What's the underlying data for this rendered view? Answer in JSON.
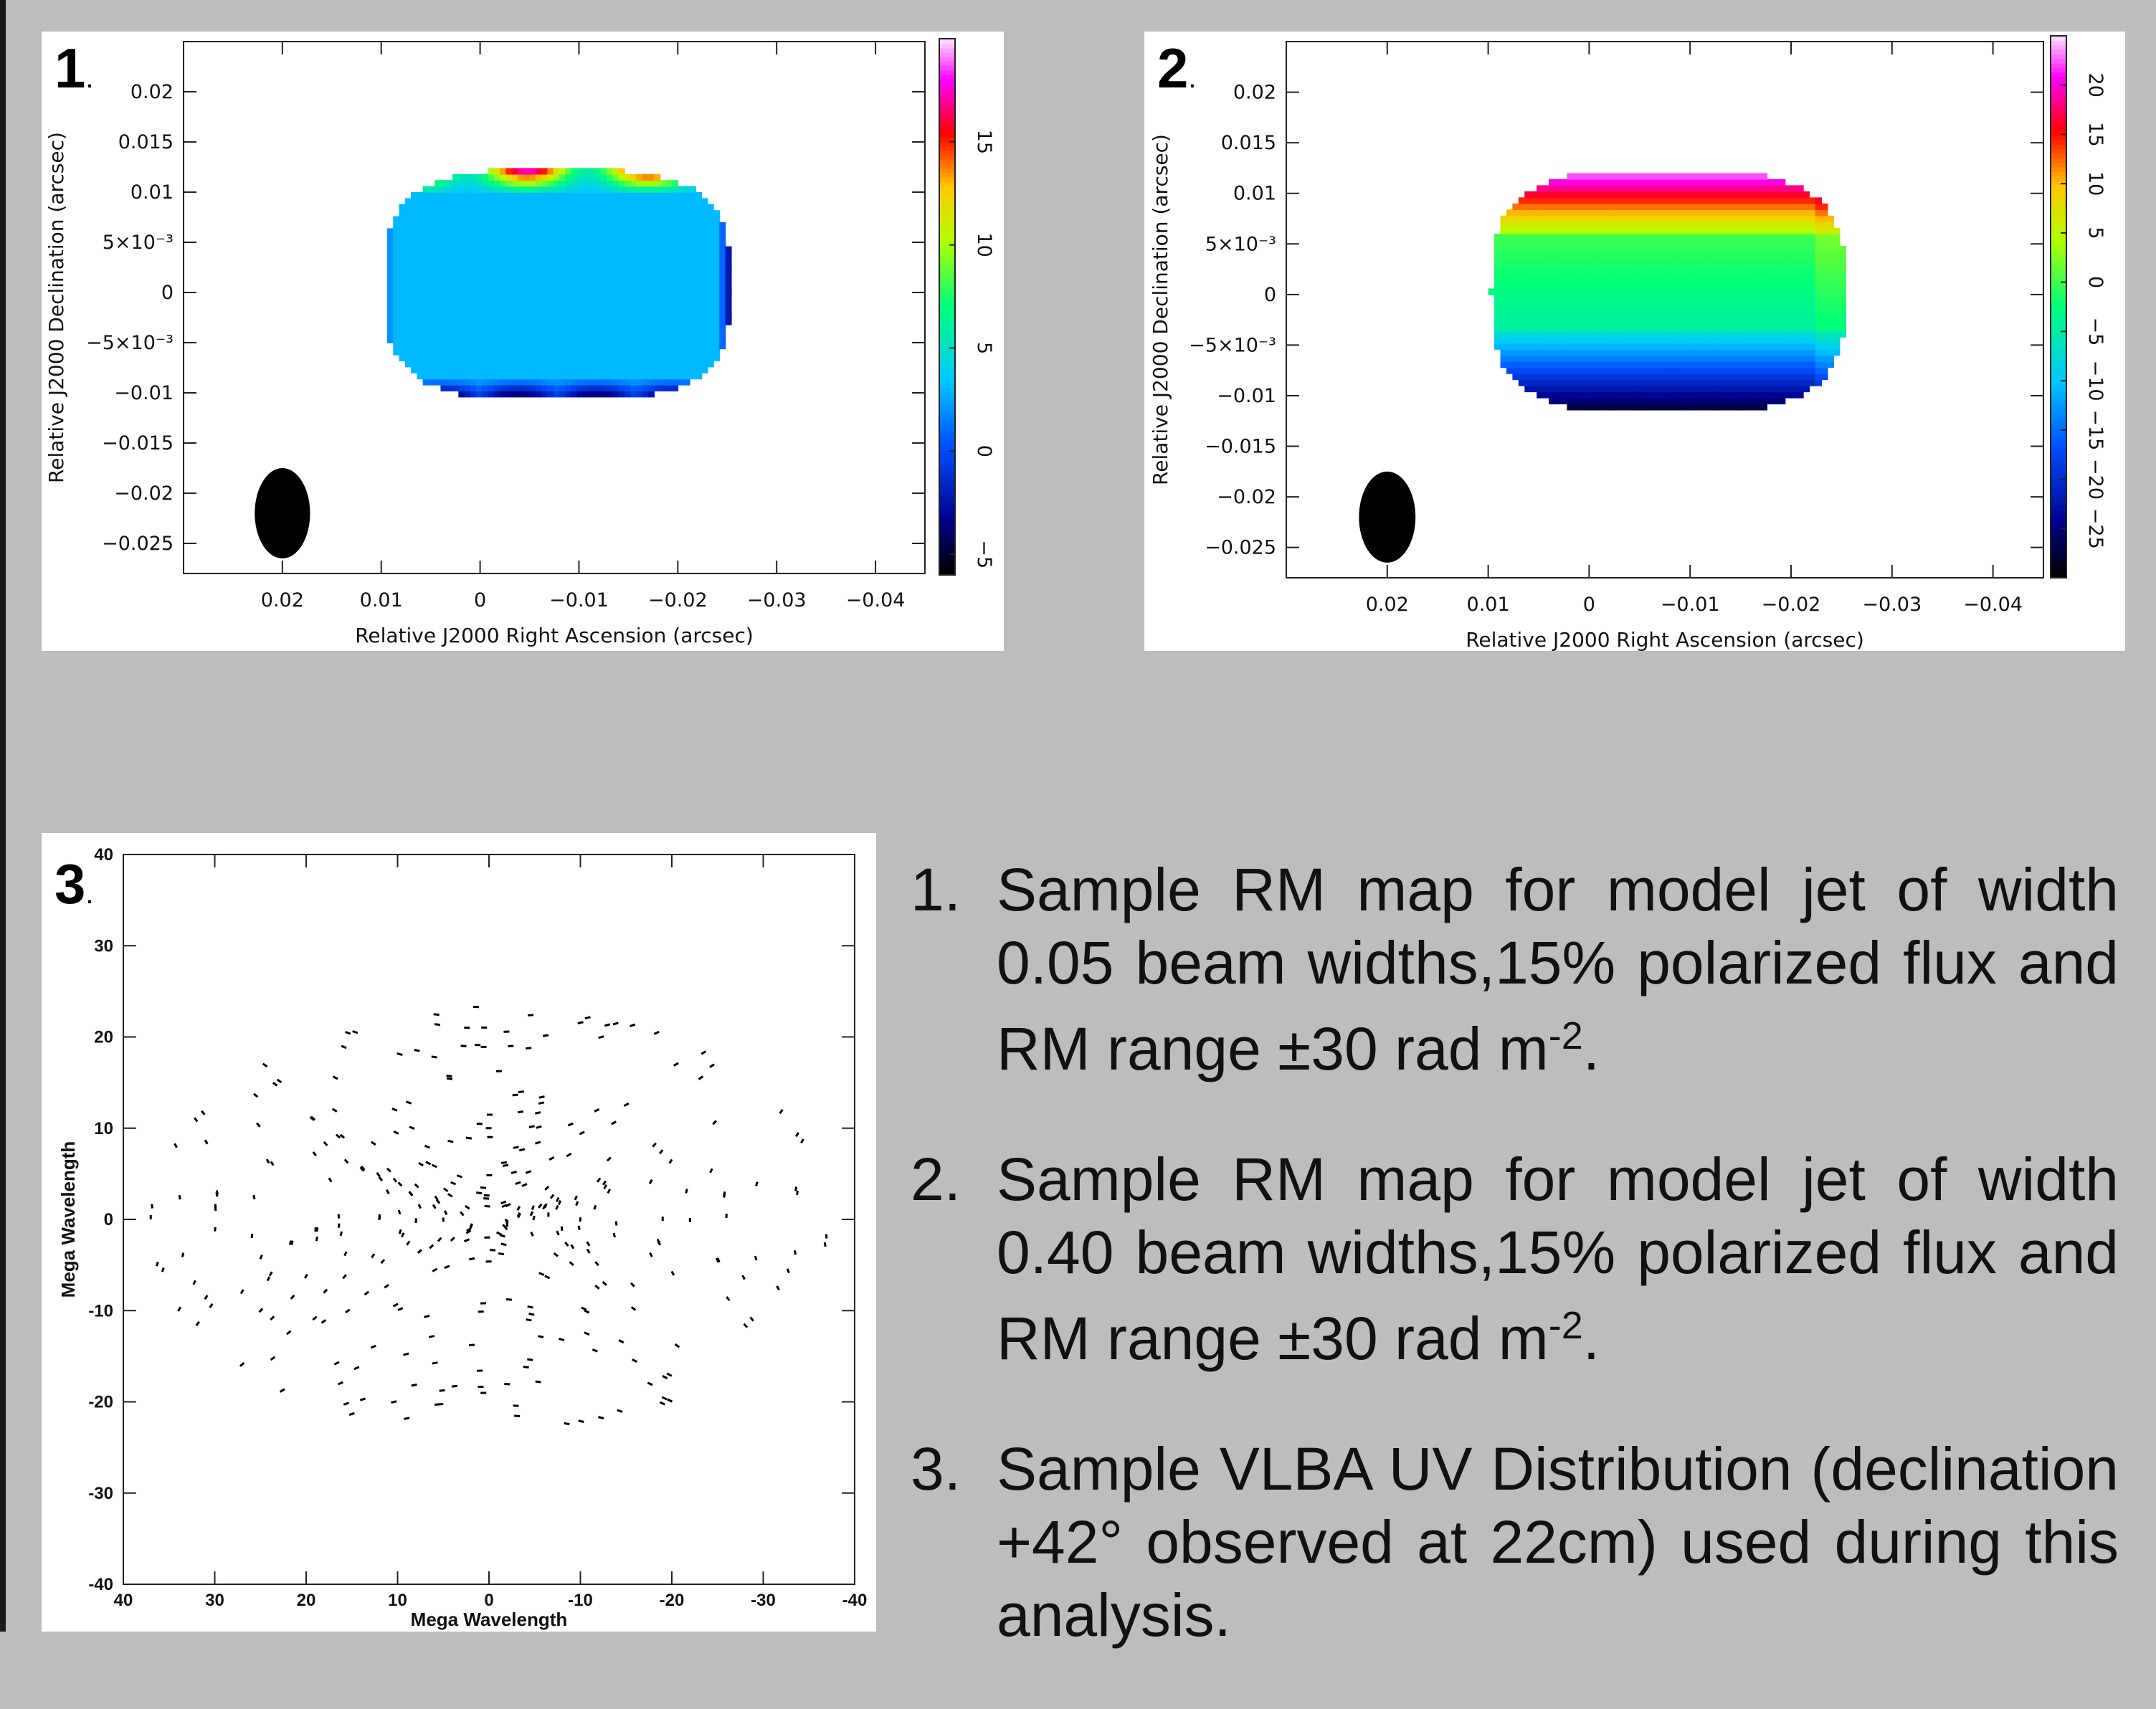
{
  "panels": [
    {
      "number": "1",
      "number_suffix": ".",
      "chart_data": {
        "type": "heatmap",
        "xlabel": "Relative J2000 Right Ascension (arcsec)",
        "ylabel": "Relative J2000 Declination (arcsec)",
        "xlim": [
          0.03,
          -0.045
        ],
        "ylim": [
          -0.028,
          0.025
        ],
        "xticks": [
          0.02,
          0.01,
          0,
          -0.01,
          -0.02,
          -0.03,
          -0.04
        ],
        "xtick_labels": [
          "0.02",
          "0.01",
          "0",
          "−0.01",
          "−0.02",
          "−0.03",
          "−0.04"
        ],
        "yticks": [
          0.02,
          0.015,
          0.01,
          0.005,
          0,
          -0.005,
          -0.01,
          -0.015,
          -0.02,
          -0.025
        ],
        "ytick_labels": [
          "0.02",
          "0.015",
          "0.01",
          "5×10⁻³",
          "0",
          "−5×10⁻³",
          "−0.01",
          "−0.015",
          "−0.02",
          "−0.025"
        ],
        "colorbar": {
          "range": [
            -6,
            20
          ],
          "ticks": [
            15,
            10,
            5,
            0,
            -5
          ],
          "tick_labels": [
            "15",
            "10",
            "5",
            "0",
            "−5"
          ]
        },
        "source_extent": {
          "ra": [
            0.01,
            -0.025
          ],
          "dec": [
            -0.011,
            0.012
          ]
        },
        "background_value": 3,
        "beam": {
          "ra": 0.02,
          "dec": -0.022,
          "ra_halfwidth": 0.0028,
          "dec_halfheight": 0.0045
        },
        "grid": false
      }
    },
    {
      "number": "2",
      "number_suffix": ".",
      "chart_data": {
        "type": "heatmap",
        "xlabel": "Relative J2000 Right Ascension (arcsec)",
        "ylabel": "Relative J2000 Declination (arcsec)",
        "xlim": [
          0.03,
          -0.045
        ],
        "ylim": [
          -0.028,
          0.025
        ],
        "xticks": [
          0.02,
          0.01,
          0,
          -0.01,
          -0.02,
          -0.03,
          -0.04
        ],
        "xtick_labels": [
          "0.02",
          "0.01",
          "0",
          "−0.01",
          "−0.02",
          "−0.03",
          "−0.04"
        ],
        "yticks": [
          0.02,
          0.015,
          0.01,
          0.005,
          0,
          -0.005,
          -0.01,
          -0.015,
          -0.02,
          -0.025
        ],
        "ytick_labels": [
          "0.02",
          "0.015",
          "0.01",
          "5×10⁻³",
          "0",
          "−5×10⁻³",
          "−0.01",
          "−0.015",
          "−0.02",
          "−0.025"
        ],
        "colorbar": {
          "range": [
            -30,
            25
          ],
          "ticks": [
            20,
            15,
            10,
            5,
            0,
            -5,
            -10,
            -15,
            -20,
            -25
          ],
          "tick_labels": [
            "20",
            "15",
            "10",
            "5",
            "0",
            "−5",
            "−10",
            "−15",
            "−20",
            "−25"
          ]
        },
        "source_extent": {
          "ra": [
            0.01,
            -0.025
          ],
          "dec": [
            -0.012,
            0.012
          ]
        },
        "background_value": -3,
        "beam": {
          "ra": 0.02,
          "dec": -0.022,
          "ra_halfwidth": 0.0028,
          "dec_halfheight": 0.0045
        },
        "grid": false
      }
    },
    {
      "number": "3",
      "number_suffix": ".",
      "chart_data": {
        "type": "scatter",
        "xlabel": "Mega Wavelength",
        "ylabel": "Mega Wavelength",
        "xlim": [
          40,
          -40
        ],
        "ylim": [
          -40,
          40
        ],
        "xticks": [
          40,
          30,
          20,
          10,
          0,
          -10,
          -20,
          -30,
          -40
        ],
        "xtick_labels": [
          "40",
          "30",
          "20",
          "10",
          "0",
          "-10",
          "-20",
          "-30",
          "-40"
        ],
        "yticks": [
          40,
          30,
          20,
          10,
          0,
          -10,
          -20,
          -30,
          -40
        ],
        "ytick_labels": [
          "40",
          "30",
          "20",
          "10",
          "0",
          "-10",
          "-20",
          "-30",
          "-40"
        ],
        "description": "VLBA uv coverage: short dashed elliptical tracks centred on the origin out to about ±38 mega-wavelengths",
        "grid": false
      }
    }
  ],
  "captions": [
    {
      "number": "1.",
      "text": "Sample RM map for model jet of width 0.05 beam widths,15% polarized flux and RM range ±30 rad m",
      "sup": "-2",
      "end": "."
    },
    {
      "number": "2.",
      "text": "Sample RM map for model jet of width 0.40 beam widths,15% polarized flux and RM range ±30 rad m",
      "sup": "-2",
      "end": "."
    },
    {
      "number": "3.",
      "text": "Sample VLBA UV Distribution (declination +42° observed at 22cm) used during this analysis.",
      "sup": "",
      "end": ""
    }
  ]
}
